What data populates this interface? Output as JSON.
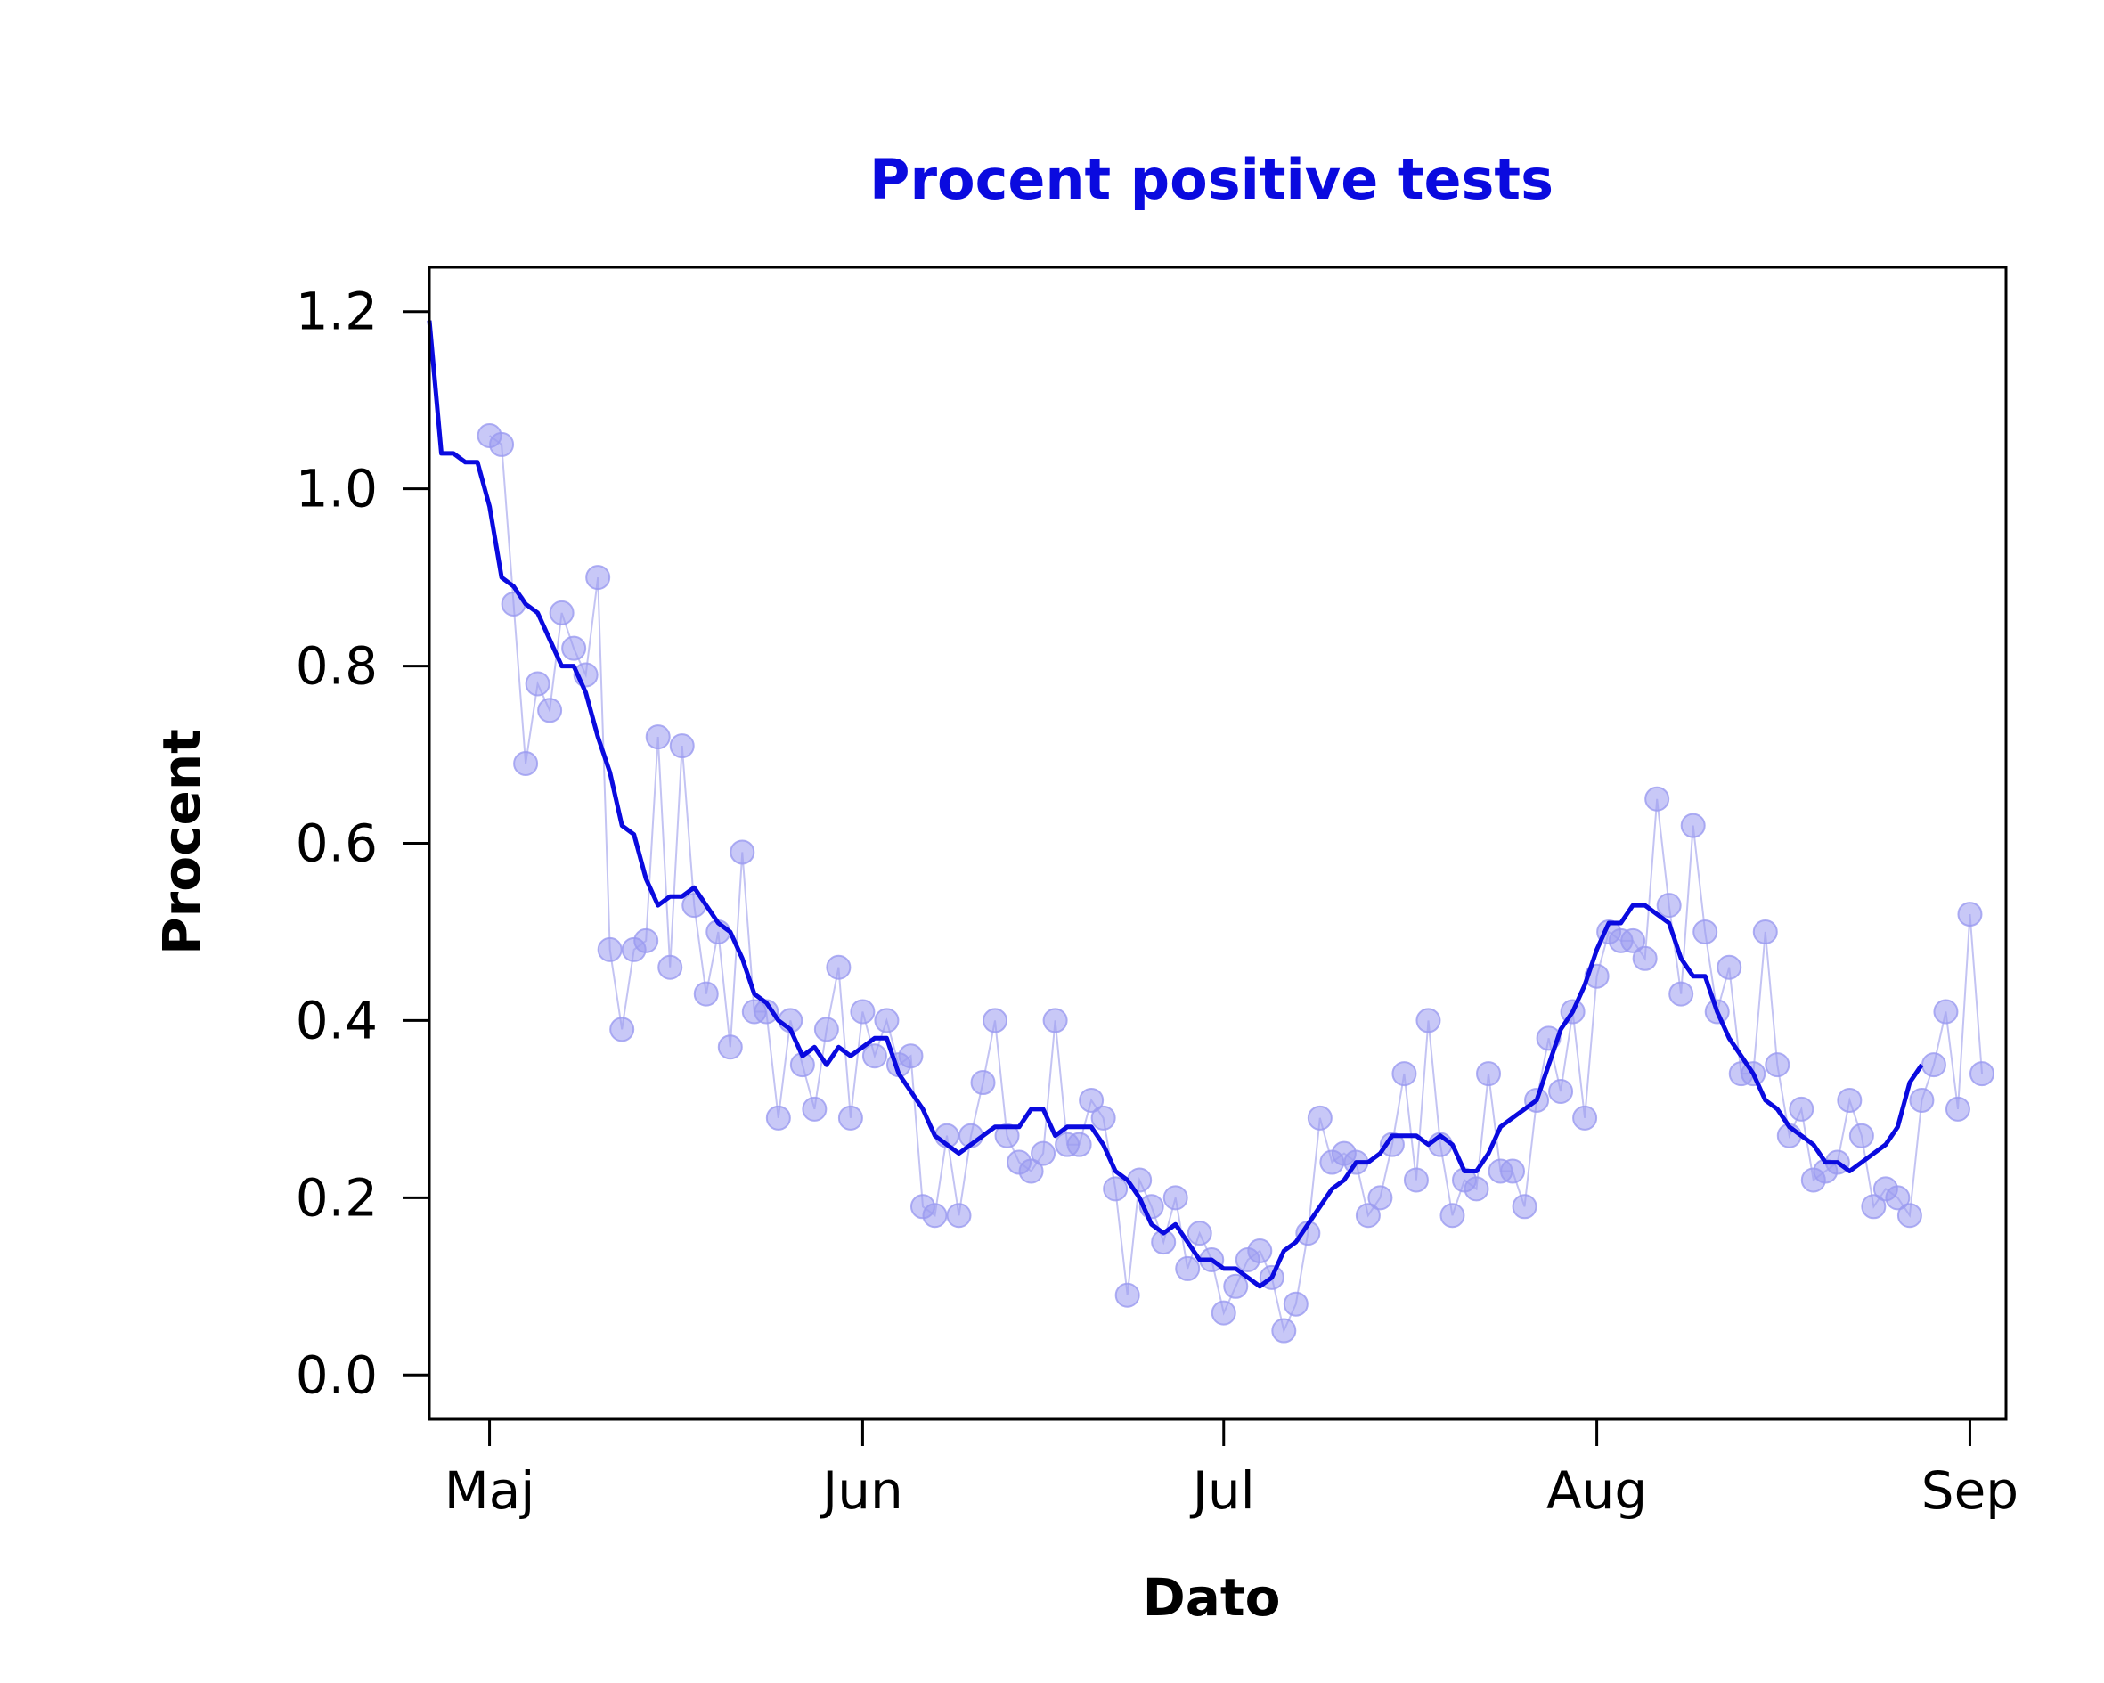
{
  "chart_data": {
    "type": "scatter",
    "title": "Procent positive tests",
    "xlabel": "Dato",
    "ylabel": "Procent",
    "xlim": [
      "2020-04-26",
      "2020-09-04"
    ],
    "ylim": [
      -0.05,
      1.25
    ],
    "x_ticks": [
      {
        "date": "2020-05-01",
        "label": "Maj"
      },
      {
        "date": "2020-06-01",
        "label": "Jun"
      },
      {
        "date": "2020-07-01",
        "label": "Jul"
      },
      {
        "date": "2020-08-01",
        "label": "Aug"
      },
      {
        "date": "2020-09-01",
        "label": "Sep"
      }
    ],
    "y_ticks": [
      {
        "value": 0.0,
        "label": "0.0"
      },
      {
        "value": 0.2,
        "label": "0.2"
      },
      {
        "value": 0.4,
        "label": "0.4"
      },
      {
        "value": 0.6,
        "label": "0.6"
      },
      {
        "value": 0.8,
        "label": "0.8"
      },
      {
        "value": 1.0,
        "label": "1.0"
      },
      {
        "value": 1.2,
        "label": "1.2"
      }
    ],
    "colors": {
      "title": "#0a0adf",
      "trend": "#0a0adf",
      "points": "#9a9af0",
      "daily_line": "#c3c3f3"
    },
    "series": [
      {
        "type": "scatter",
        "start_date": "2020-05-01",
        "values": [
          1.06,
          1.05,
          0.87,
          0.69,
          0.78,
          0.75,
          0.86,
          0.82,
          0.79,
          0.9,
          0.48,
          0.39,
          0.48,
          0.49,
          0.72,
          0.46,
          0.71,
          0.53,
          0.43,
          0.5,
          0.37,
          0.59,
          0.41,
          0.41,
          0.29,
          0.4,
          0.35,
          0.3,
          0.39,
          0.46,
          0.29,
          0.41,
          0.36,
          0.4,
          0.35,
          0.36,
          0.19,
          0.18,
          0.27,
          0.18,
          0.27,
          0.33,
          0.4,
          0.27,
          0.24,
          0.23,
          0.25,
          0.4,
          0.26,
          0.26,
          0.31,
          0.29,
          0.21,
          0.09,
          0.22,
          0.19,
          0.15,
          0.2,
          0.12,
          0.16,
          0.13,
          0.07,
          0.1,
          0.13,
          0.14,
          0.11,
          0.05,
          0.08,
          0.16,
          0.29,
          0.24,
          0.25,
          0.24,
          0.18,
          0.2,
          0.26,
          0.34,
          0.22,
          0.4,
          0.26,
          0.18,
          0.22,
          0.21,
          0.34,
          0.23,
          0.23,
          0.19,
          0.31,
          0.38,
          0.32,
          0.41,
          0.29,
          0.45,
          0.5,
          0.49,
          0.49,
          0.47,
          0.65,
          0.53,
          0.43,
          0.62,
          0.5,
          0.41,
          0.46,
          0.34,
          0.34,
          0.5,
          0.35,
          0.27,
          0.3,
          0.22,
          0.23,
          0.24,
          0.31,
          0.27,
          0.19,
          0.21,
          0.2,
          0.18,
          0.31,
          0.35,
          0.41,
          0.3,
          0.52,
          0.34
        ]
      },
      {
        "type": "line",
        "start_date": "2020-04-26",
        "values": [
          1.19,
          1.04,
          1.04,
          1.03,
          1.03,
          0.98,
          0.9,
          0.89,
          0.87,
          0.86,
          0.83,
          0.8,
          0.8,
          0.77,
          0.72,
          0.68,
          0.62,
          0.61,
          0.56,
          0.53,
          0.54,
          0.54,
          0.55,
          0.53,
          0.51,
          0.5,
          0.47,
          0.43,
          0.42,
          0.4,
          0.39,
          0.36,
          0.37,
          0.35,
          0.37,
          0.36,
          0.37,
          0.38,
          0.38,
          0.34,
          0.32,
          0.3,
          0.27,
          0.26,
          0.25,
          0.26,
          0.27,
          0.28,
          0.28,
          0.28,
          0.3,
          0.3,
          0.27,
          0.28,
          0.28,
          0.28,
          0.26,
          0.23,
          0.22,
          0.2,
          0.17,
          0.16,
          0.17,
          0.15,
          0.13,
          0.13,
          0.12,
          0.12,
          0.11,
          0.1,
          0.11,
          0.14,
          0.15,
          0.17,
          0.19,
          0.21,
          0.22,
          0.24,
          0.24,
          0.25,
          0.27,
          0.27,
          0.27,
          0.26,
          0.27,
          0.26,
          0.23,
          0.23,
          0.25,
          0.28,
          0.29,
          0.3,
          0.31,
          0.35,
          0.39,
          0.41,
          0.44,
          0.48,
          0.51,
          0.51,
          0.53,
          0.53,
          0.52,
          0.51,
          0.47,
          0.45,
          0.45,
          0.41,
          0.38,
          0.36,
          0.34,
          0.31,
          0.3,
          0.28,
          0.27,
          0.26,
          0.24,
          0.24,
          0.23,
          0.24,
          0.25,
          0.26,
          0.28,
          0.33,
          0.35
        ]
      }
    ]
  }
}
